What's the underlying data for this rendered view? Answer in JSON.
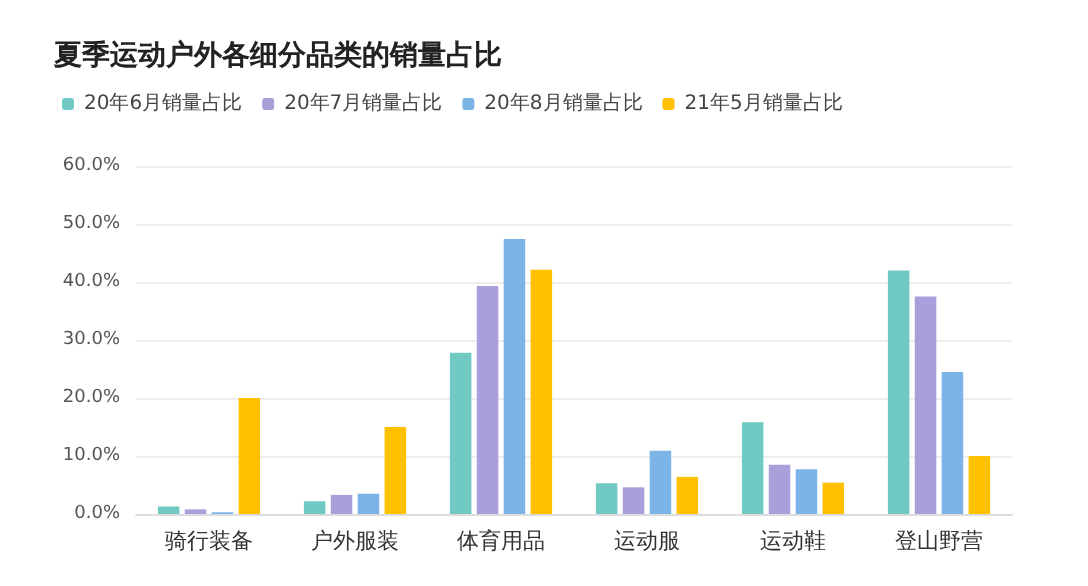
{
  "chart_data": {
    "type": "bar",
    "title": "夏季运动户外各细分品类的销量占比",
    "categories": [
      "骑行装备",
      "户外服装",
      "体育用品",
      "运动服",
      "运动鞋",
      "登山野营"
    ],
    "series": [
      {
        "name": "20年6月销量占比",
        "color": "#70c9c3",
        "values": [
          1.3,
          2.2,
          27.8,
          5.3,
          15.8,
          42
        ]
      },
      {
        "name": "20年7月销量占比",
        "color": "#ab9fdb",
        "values": [
          0.8,
          3.3,
          39.3,
          4.6,
          8.5,
          37.5
        ]
      },
      {
        "name": "20年8月销量占比",
        "color": "#7db4e8",
        "values": [
          0.3,
          3.5,
          47.4,
          10.9,
          7.7,
          24.5
        ]
      },
      {
        "name": "21年5月销量占比",
        "color": "#ffc000",
        "values": [
          20,
          15,
          42.1,
          6.4,
          5.4,
          10
        ]
      }
    ],
    "ylim": [
      0,
      60
    ],
    "yticks": [
      {
        "value": 0,
        "label": "0.0%"
      },
      {
        "value": 10,
        "label": "10.0%"
      },
      {
        "value": 20,
        "label": "20.0%"
      },
      {
        "value": 30,
        "label": "30.0%"
      },
      {
        "value": 40,
        "label": "40.0%"
      },
      {
        "value": 50,
        "label": "50.0%"
      },
      {
        "value": 60,
        "label": "60.0%"
      }
    ],
    "grid": "y",
    "legend": "top left"
  }
}
